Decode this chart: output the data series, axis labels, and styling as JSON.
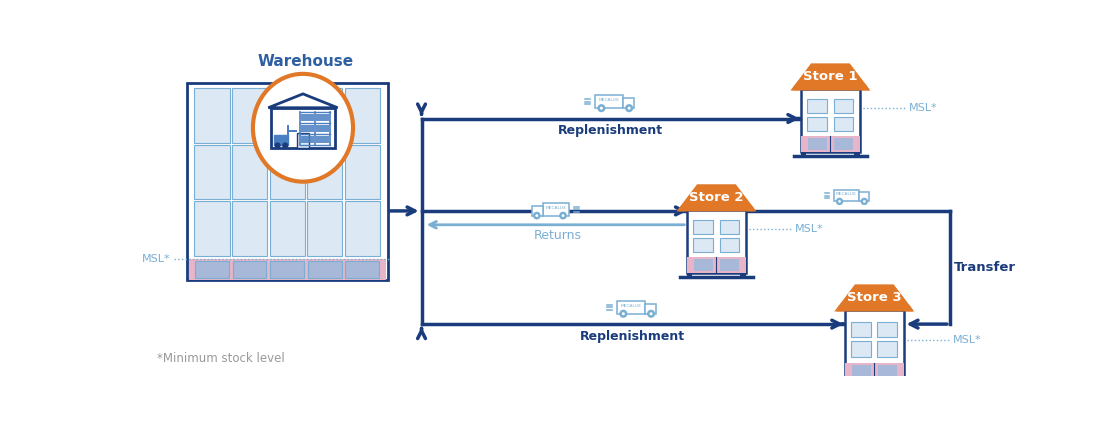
{
  "bg_color": "#ffffff",
  "dark_blue": "#1a3c7c",
  "mid_blue": "#2e5fa3",
  "light_blue": "#4a7fc1",
  "lighter_blue": "#7aafd4",
  "very_light_blue": "#dce8f4",
  "orange": "#e07828",
  "pink": "#e8b4c8",
  "lavender": "#a8b8d8",
  "gray_text": "#999999",
  "store1_label": "Store 1",
  "store2_label": "Store 2",
  "store3_label": "Store 3",
  "warehouse_label": "Warehouse",
  "replenishment1_label": "Replenishment",
  "replenishment2_label": "Replenishment",
  "returns_label": "Returns",
  "transfer_label": "Transfer",
  "msl_label": "MSL*",
  "footnote": "*Minimum stock level"
}
